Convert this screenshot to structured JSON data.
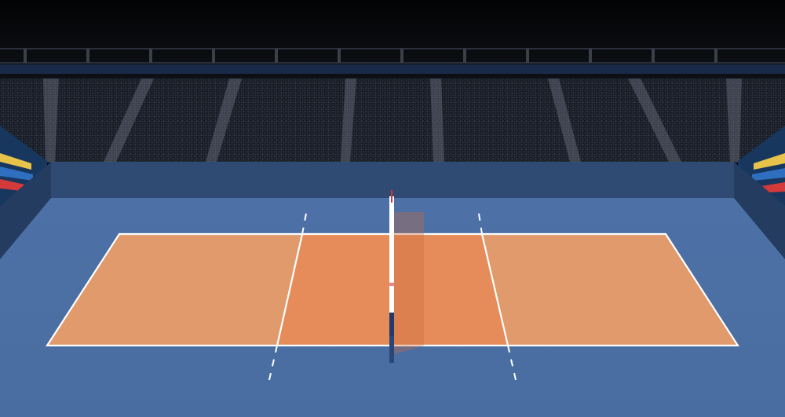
{
  "scene": {
    "kind": "volleyball-court-3d",
    "colors": {
      "sky": "#050608",
      "stand_back": "#14171d",
      "stand_side": "#1a2f52",
      "arena_floor": "#4a6ea3",
      "arena_wall": "#2b4468",
      "court_back": "#e19a6c",
      "court_front_zone": "#e68c5a",
      "court_lines": "#ffffff",
      "net_post": "#ffffff",
      "net_post_band": "#d8353a",
      "net_post_base": "#223a6a"
    },
    "icons": [
      "volleyball-net-icon",
      "crowd-stands-icon"
    ]
  }
}
